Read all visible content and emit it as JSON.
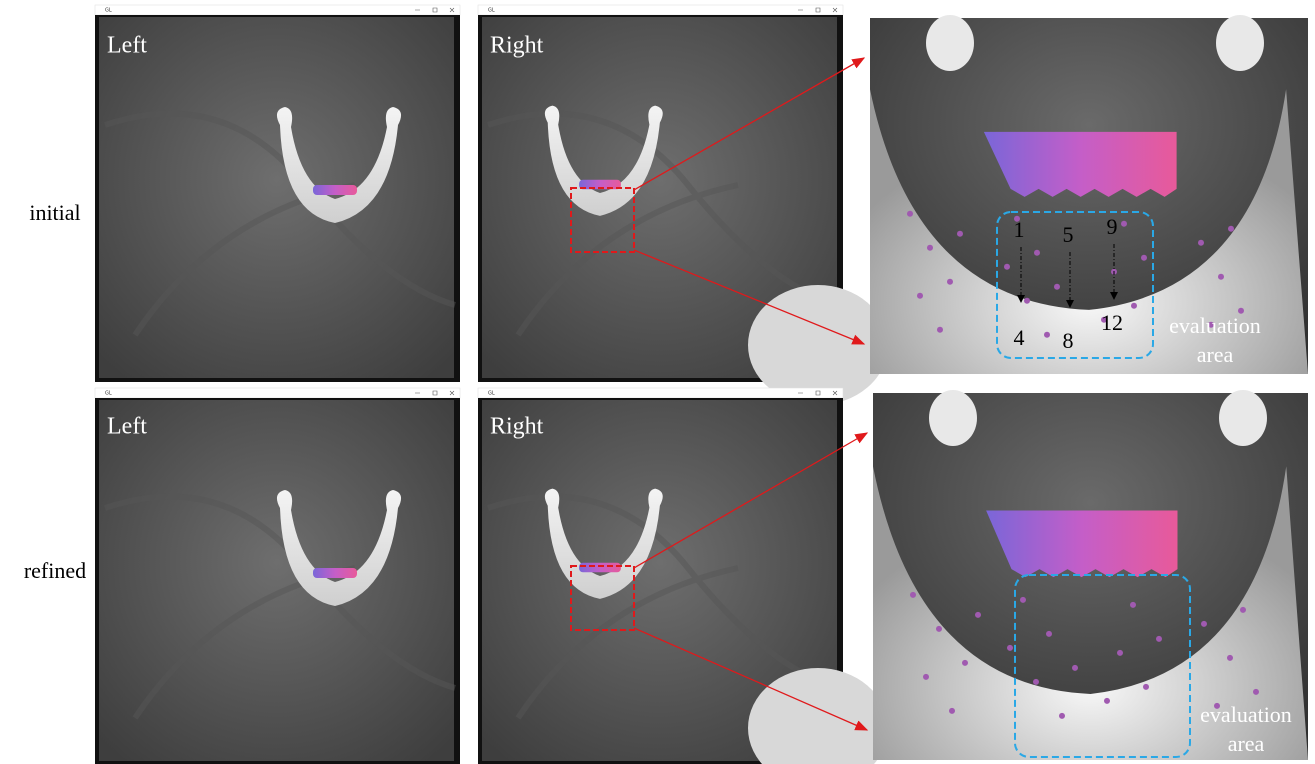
{
  "rows": [
    {
      "label": "initial",
      "panels": [
        {
          "window_title": "GL",
          "label": "Left"
        },
        {
          "window_title": "GL",
          "label": "Right"
        }
      ],
      "zoom": {
        "point_labels": [
          "1",
          "5",
          "9",
          "4",
          "8",
          "12"
        ],
        "area_label": [
          "evaluation",
          "area"
        ]
      }
    },
    {
      "label": "refined",
      "panels": [
        {
          "window_title": "GL",
          "label": "Left"
        },
        {
          "window_title": "GL",
          "label": "Right"
        }
      ],
      "zoom": {
        "area_label": [
          "evaluation",
          "area"
        ]
      }
    }
  ]
}
